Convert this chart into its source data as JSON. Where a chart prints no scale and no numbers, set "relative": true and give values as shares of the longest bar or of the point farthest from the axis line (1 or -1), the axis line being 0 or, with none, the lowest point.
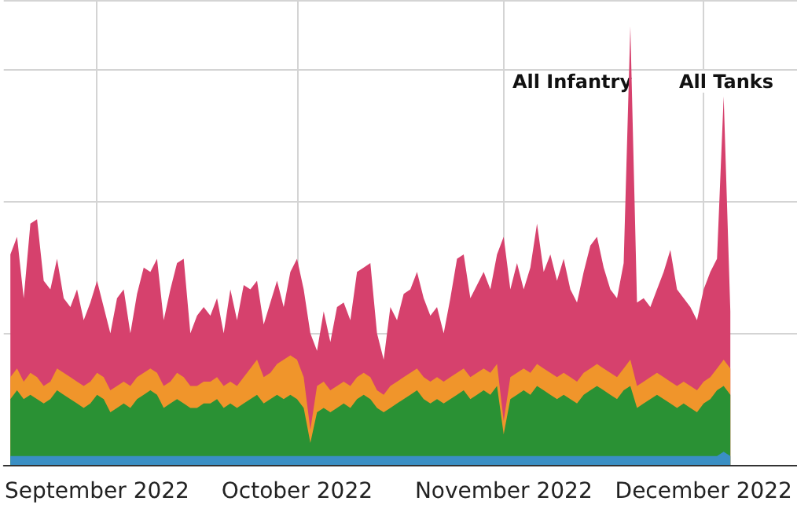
{
  "chart_data": {
    "type": "area",
    "relative": true,
    "grid": true,
    "xlim": [
      "2022-08-18",
      "2022-12-15"
    ],
    "xticks": [
      {
        "value": "2022-09-01",
        "label": "September 2022"
      },
      {
        "value": "2022-10-01",
        "label": "October 2022"
      },
      {
        "value": "2022-11-01",
        "label": "November 2022"
      },
      {
        "value": "2022-12-01",
        "label": "December 2022"
      }
    ],
    "annotations": [
      "All Infantry",
      "All Tanks"
    ],
    "x": [
      "2022-08-19",
      "2022-08-20",
      "2022-08-21",
      "2022-08-22",
      "2022-08-23",
      "2022-08-24",
      "2022-08-25",
      "2022-08-26",
      "2022-08-27",
      "2022-08-28",
      "2022-08-29",
      "2022-08-30",
      "2022-08-31",
      "2022-09-01",
      "2022-09-02",
      "2022-09-03",
      "2022-09-04",
      "2022-09-05",
      "2022-09-06",
      "2022-09-07",
      "2022-09-08",
      "2022-09-09",
      "2022-09-10",
      "2022-09-11",
      "2022-09-12",
      "2022-09-13",
      "2022-09-14",
      "2022-09-15",
      "2022-09-16",
      "2022-09-17",
      "2022-09-18",
      "2022-09-19",
      "2022-09-20",
      "2022-09-21",
      "2022-09-22",
      "2022-09-23",
      "2022-09-24",
      "2022-09-25",
      "2022-09-26",
      "2022-09-27",
      "2022-09-28",
      "2022-09-29",
      "2022-09-30",
      "2022-10-01",
      "2022-10-02",
      "2022-10-03",
      "2022-10-04",
      "2022-10-05",
      "2022-10-06",
      "2022-10-07",
      "2022-10-08",
      "2022-10-09",
      "2022-10-10",
      "2022-10-11",
      "2022-10-12",
      "2022-10-13",
      "2022-10-14",
      "2022-10-15",
      "2022-10-16",
      "2022-10-17",
      "2022-10-18",
      "2022-10-19",
      "2022-10-20",
      "2022-10-21",
      "2022-10-22",
      "2022-10-23",
      "2022-10-24",
      "2022-10-25",
      "2022-10-26",
      "2022-10-27",
      "2022-10-28",
      "2022-10-29",
      "2022-10-30",
      "2022-10-31",
      "2022-11-01",
      "2022-11-02",
      "2022-11-03",
      "2022-11-04",
      "2022-11-05",
      "2022-11-06",
      "2022-11-07",
      "2022-11-08",
      "2022-11-09",
      "2022-11-10",
      "2022-11-11",
      "2022-11-12",
      "2022-11-13",
      "2022-11-14",
      "2022-11-15",
      "2022-11-16",
      "2022-11-17",
      "2022-11-18",
      "2022-11-19",
      "2022-11-20",
      "2022-11-21",
      "2022-11-22",
      "2022-11-23",
      "2022-11-24",
      "2022-11-25",
      "2022-11-26",
      "2022-11-27",
      "2022-11-28",
      "2022-11-29",
      "2022-11-30",
      "2022-12-01",
      "2022-12-02",
      "2022-12-03",
      "2022-12-04",
      "2022-12-05"
    ],
    "series": [
      {
        "color": "#d6416d",
        "values": [
          0.48,
          0.52,
          0.38,
          0.55,
          0.56,
          0.42,
          0.4,
          0.47,
          0.38,
          0.36,
          0.4,
          0.33,
          0.37,
          0.42,
          0.36,
          0.3,
          0.38,
          0.4,
          0.3,
          0.39,
          0.45,
          0.44,
          0.47,
          0.33,
          0.4,
          0.46,
          0.47,
          0.3,
          0.34,
          0.36,
          0.34,
          0.38,
          0.3,
          0.4,
          0.33,
          0.41,
          0.4,
          0.42,
          0.32,
          0.37,
          0.42,
          0.36,
          0.44,
          0.47,
          0.4,
          0.3,
          0.26,
          0.35,
          0.28,
          0.36,
          0.37,
          0.33,
          0.44,
          0.45,
          0.46,
          0.3,
          0.24,
          0.36,
          0.33,
          0.39,
          0.4,
          0.44,
          0.38,
          0.34,
          0.36,
          0.3,
          0.38,
          0.47,
          0.48,
          0.38,
          0.41,
          0.44,
          0.4,
          0.48,
          0.52,
          0.4,
          0.46,
          0.4,
          0.45,
          0.55,
          0.44,
          0.48,
          0.42,
          0.47,
          0.4,
          0.37,
          0.44,
          0.5,
          0.52,
          0.45,
          0.4,
          0.38,
          0.46,
          1.0,
          0.37,
          0.38,
          0.36,
          0.4,
          0.44,
          0.49,
          0.4,
          0.38,
          0.36,
          0.33,
          0.4,
          0.44,
          0.47,
          0.84,
          0.35
        ]
      },
      {
        "color": "#f0952b",
        "values": [
          0.2,
          0.22,
          0.19,
          0.21,
          0.2,
          0.18,
          0.19,
          0.22,
          0.21,
          0.2,
          0.19,
          0.18,
          0.19,
          0.21,
          0.2,
          0.17,
          0.18,
          0.19,
          0.18,
          0.2,
          0.21,
          0.22,
          0.21,
          0.18,
          0.19,
          0.21,
          0.2,
          0.18,
          0.18,
          0.19,
          0.19,
          0.2,
          0.18,
          0.19,
          0.18,
          0.2,
          0.22,
          0.24,
          0.2,
          0.21,
          0.23,
          0.24,
          0.25,
          0.24,
          0.2,
          0.08,
          0.18,
          0.19,
          0.17,
          0.18,
          0.19,
          0.18,
          0.2,
          0.21,
          0.2,
          0.17,
          0.16,
          0.18,
          0.19,
          0.2,
          0.21,
          0.22,
          0.2,
          0.19,
          0.2,
          0.19,
          0.2,
          0.21,
          0.22,
          0.2,
          0.21,
          0.22,
          0.21,
          0.23,
          0.1,
          0.2,
          0.21,
          0.22,
          0.21,
          0.23,
          0.22,
          0.21,
          0.2,
          0.21,
          0.2,
          0.19,
          0.21,
          0.22,
          0.23,
          0.22,
          0.21,
          0.2,
          0.22,
          0.24,
          0.18,
          0.19,
          0.2,
          0.21,
          0.2,
          0.19,
          0.18,
          0.19,
          0.18,
          0.17,
          0.19,
          0.2,
          0.22,
          0.24,
          0.22
        ]
      },
      {
        "color": "#2a9134",
        "values": [
          0.15,
          0.17,
          0.15,
          0.16,
          0.15,
          0.14,
          0.15,
          0.17,
          0.16,
          0.15,
          0.14,
          0.13,
          0.14,
          0.16,
          0.15,
          0.12,
          0.13,
          0.14,
          0.13,
          0.15,
          0.16,
          0.17,
          0.16,
          0.13,
          0.14,
          0.15,
          0.14,
          0.13,
          0.13,
          0.14,
          0.14,
          0.15,
          0.13,
          0.14,
          0.13,
          0.14,
          0.15,
          0.16,
          0.14,
          0.15,
          0.16,
          0.15,
          0.16,
          0.15,
          0.13,
          0.05,
          0.12,
          0.13,
          0.12,
          0.13,
          0.14,
          0.13,
          0.15,
          0.16,
          0.15,
          0.13,
          0.12,
          0.13,
          0.14,
          0.15,
          0.16,
          0.17,
          0.15,
          0.14,
          0.15,
          0.14,
          0.15,
          0.16,
          0.17,
          0.15,
          0.16,
          0.17,
          0.16,
          0.18,
          0.07,
          0.15,
          0.16,
          0.17,
          0.16,
          0.18,
          0.17,
          0.16,
          0.15,
          0.16,
          0.15,
          0.14,
          0.16,
          0.17,
          0.18,
          0.17,
          0.16,
          0.15,
          0.17,
          0.18,
          0.13,
          0.14,
          0.15,
          0.16,
          0.15,
          0.14,
          0.13,
          0.14,
          0.13,
          0.12,
          0.14,
          0.15,
          0.17,
          0.18,
          0.16
        ]
      },
      {
        "color": "#3a8fc4",
        "values": [
          0.02,
          0.02,
          0.02,
          0.02,
          0.02,
          0.02,
          0.02,
          0.02,
          0.02,
          0.02,
          0.02,
          0.02,
          0.02,
          0.02,
          0.02,
          0.02,
          0.02,
          0.02,
          0.02,
          0.02,
          0.02,
          0.02,
          0.02,
          0.02,
          0.02,
          0.02,
          0.02,
          0.02,
          0.02,
          0.02,
          0.02,
          0.02,
          0.02,
          0.02,
          0.02,
          0.02,
          0.02,
          0.02,
          0.02,
          0.02,
          0.02,
          0.02,
          0.02,
          0.02,
          0.02,
          0.02,
          0.02,
          0.02,
          0.02,
          0.02,
          0.02,
          0.02,
          0.02,
          0.02,
          0.02,
          0.02,
          0.02,
          0.02,
          0.02,
          0.02,
          0.02,
          0.02,
          0.02,
          0.02,
          0.02,
          0.02,
          0.02,
          0.02,
          0.02,
          0.02,
          0.02,
          0.02,
          0.02,
          0.02,
          0.02,
          0.02,
          0.02,
          0.02,
          0.02,
          0.02,
          0.02,
          0.02,
          0.02,
          0.02,
          0.02,
          0.02,
          0.02,
          0.02,
          0.02,
          0.02,
          0.02,
          0.02,
          0.02,
          0.02,
          0.02,
          0.02,
          0.02,
          0.02,
          0.02,
          0.02,
          0.02,
          0.02,
          0.02,
          0.02,
          0.02,
          0.02,
          0.02,
          0.03,
          0.02
        ]
      }
    ]
  }
}
